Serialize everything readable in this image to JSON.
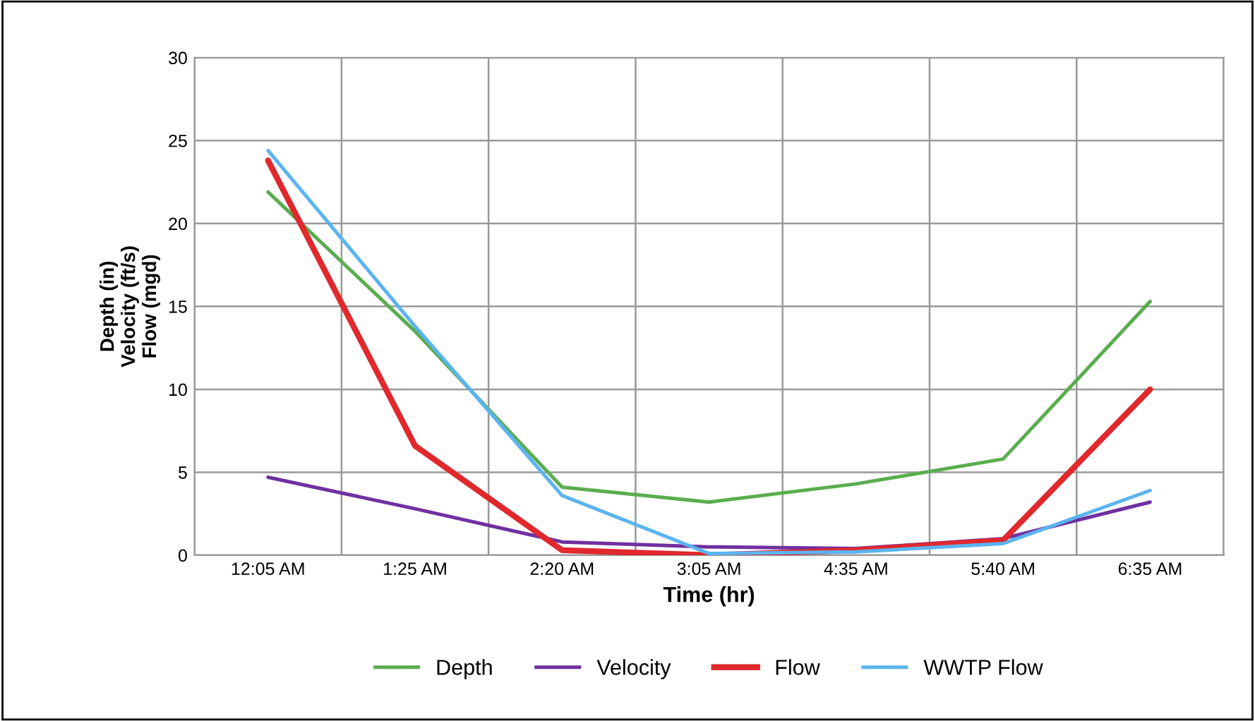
{
  "chart_data": {
    "type": "line",
    "xlabel": "Time (hr)",
    "ylabel": "Depth (in)\nVelocity (ft/s)\nFlow (mgd)",
    "categories": [
      "12:05 AM",
      "1:25 AM",
      "2:20 AM",
      "3:05 AM",
      "4:35 AM",
      "5:40 AM",
      "6:35 AM"
    ],
    "series": [
      {
        "name": "Depth",
        "color": "#5aad4e",
        "values": [
          21.9,
          13.5,
          4.1,
          3.2,
          4.3,
          5.8,
          15.3
        ]
      },
      {
        "name": "Velocity",
        "color": "#7030a0",
        "values": [
          4.7,
          2.8,
          0.8,
          0.5,
          0.4,
          1.0,
          3.2
        ]
      },
      {
        "name": "Flow",
        "color": "#e0282d",
        "values": [
          23.8,
          6.6,
          0.3,
          0.0,
          0.3,
          0.9,
          10.0
        ]
      },
      {
        "name": "WWTP Flow",
        "color": "#5ab4f0",
        "values": [
          24.4,
          13.8,
          3.6,
          0.1,
          0.2,
          0.7,
          3.9
        ]
      }
    ],
    "ylim": [
      0,
      30
    ],
    "yticks": [
      0,
      5,
      10,
      15,
      20,
      25,
      30
    ],
    "grid": true,
    "legend": "bottom",
    "marker": "none",
    "line_style": "solid"
  }
}
